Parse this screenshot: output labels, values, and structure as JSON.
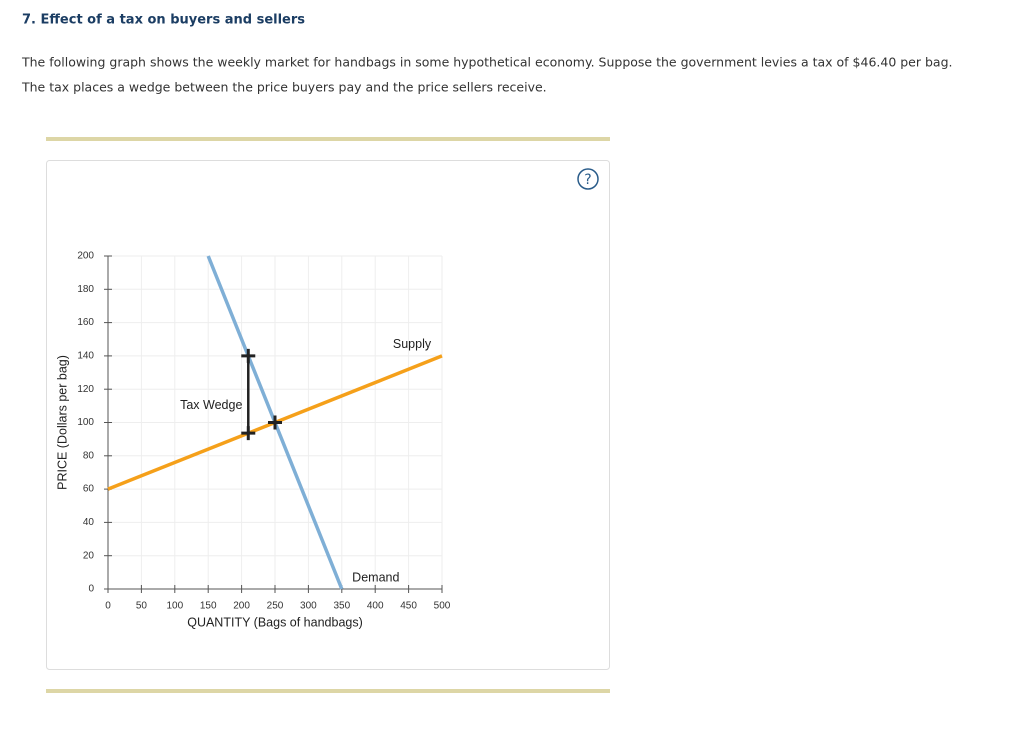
{
  "question": {
    "title": "7. Effect of a tax on buyers and sellers",
    "lines": [
      "The following graph shows the weekly market for handbags in some hypothetical economy. Suppose the government levies a tax of $46.40 per bag.",
      "The tax places a wedge between the price buyers pay and the price sellers receive."
    ],
    "help_icon": "?"
  },
  "chart_data": {
    "type": "line",
    "x_label": "QUANTITY (Bags of handbags)",
    "y_label": "PRICE (Dollars per bag)",
    "xlim": [
      0,
      500
    ],
    "xticks": [
      0,
      50,
      100,
      150,
      200,
      250,
      300,
      350,
      400,
      450,
      500
    ],
    "ylim": [
      0,
      200
    ],
    "yticks": [
      0,
      20,
      40,
      60,
      80,
      100,
      120,
      140,
      160,
      180,
      200
    ],
    "grid": true,
    "series": [
      {
        "name": "Supply",
        "color": "#f5a01a",
        "x": [
          0,
          500
        ],
        "values": [
          60,
          140
        ]
      },
      {
        "name": "Demand",
        "color": "#7fafd6",
        "x": [
          150,
          350
        ],
        "values": [
          200,
          0
        ]
      }
    ],
    "tax_wedge": {
      "label": "Tax Wedge",
      "x": 210,
      "values": [
        140,
        93.6
      ]
    },
    "equilibrium": {
      "x": 250,
      "y": 100
    }
  }
}
